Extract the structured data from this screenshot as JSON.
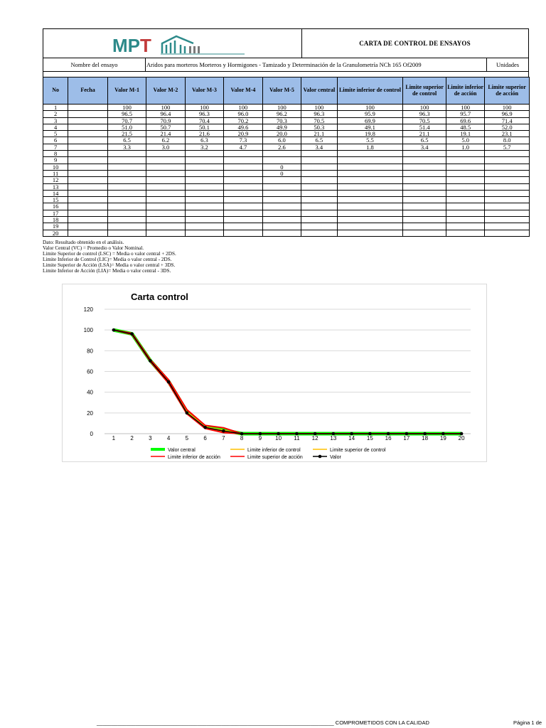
{
  "header": {
    "logo": "MPT",
    "title": "CARTA DE CONTROL DE ENSAYOS"
  },
  "test_row": {
    "label": "Nombre del ensayo",
    "name": "Aridos para morteros Morteros y Hormigones -  Tamizado y Determinación de la Granulometría NCh 165 Of2009",
    "units_label": "Unidades"
  },
  "table": {
    "columns": [
      "No",
      "Fecha",
      "Valor M-1",
      "Valor M-2",
      "Valor M-3",
      "Valor M-4",
      "Valor M-5",
      "Valor central",
      "Limite inferior de control",
      "Limite superior de control",
      "Limite inferior de acción",
      "Limite superior de acción"
    ],
    "rows": [
      [
        "1",
        "",
        "100",
        "100",
        "100",
        "100",
        "100",
        "100",
        "100",
        "100",
        "100",
        "100"
      ],
      [
        "2",
        "",
        "96.5",
        "96.4",
        "96.3",
        "96.0",
        "96.2",
        "96.3",
        "95.9",
        "96.3",
        "95.7",
        "96.9"
      ],
      [
        "3",
        "",
        "70.7",
        "70.9",
        "70.4",
        "70.2",
        "70.3",
        "70.5",
        "69.9",
        "70.5",
        "69.6",
        "71.4"
      ],
      [
        "4",
        "",
        "51.0",
        "50.7",
        "50.1",
        "49.6",
        "49.9",
        "50.3",
        "49.1",
        "51.4",
        "48.5",
        "52.0"
      ],
      [
        "5",
        "",
        "21.5",
        "21.4",
        "21.6",
        "20.9",
        "20.0",
        "21.1",
        "19.8",
        "21.1",
        "19.1",
        "23.1"
      ],
      [
        "6",
        "",
        "6.5",
        "6.2",
        "6.3",
        "7.3",
        "6.0",
        "6.5",
        "5.5",
        "6.5",
        "5.0",
        "8.0"
      ],
      [
        "7",
        "",
        "3.3",
        "3.0",
        "3.2",
        "4.7",
        "2.6",
        "3.4",
        "1.8",
        "3.4",
        "1.0",
        "5.7"
      ],
      [
        "8",
        "",
        "",
        "",
        "",
        "",
        "",
        "",
        "",
        "",
        "",
        ""
      ],
      [
        "9",
        "",
        "",
        "",
        "",
        "",
        "",
        "",
        "",
        "",
        "",
        ""
      ],
      [
        "10",
        "",
        "",
        "",
        "",
        "",
        "0",
        "",
        "",
        "",
        "",
        ""
      ],
      [
        "11",
        "",
        "",
        "",
        "",
        "",
        "0",
        "",
        "",
        "",
        "",
        ""
      ],
      [
        "12",
        "",
        "",
        "",
        "",
        "",
        "",
        "",
        "",
        "",
        "",
        ""
      ],
      [
        "13",
        "",
        "",
        "",
        "",
        "",
        "",
        "",
        "",
        "",
        "",
        ""
      ],
      [
        "14",
        "",
        "",
        "",
        "",
        "",
        "",
        "",
        "",
        "",
        "",
        ""
      ],
      [
        "15",
        "",
        "",
        "",
        "",
        "",
        "",
        "",
        "",
        "",
        "",
        ""
      ],
      [
        "16",
        "",
        "",
        "",
        "",
        "",
        "",
        "",
        "",
        "",
        "",
        ""
      ],
      [
        "17",
        "",
        "",
        "",
        "",
        "",
        "",
        "",
        "",
        "",
        "",
        ""
      ],
      [
        "18",
        "",
        "",
        "",
        "",
        "",
        "",
        "",
        "",
        "",
        "",
        ""
      ],
      [
        "19",
        "",
        "",
        "",
        "",
        "",
        "",
        "",
        "",
        "",
        "",
        ""
      ],
      [
        "20",
        "",
        "",
        "",
        "",
        "",
        "",
        "",
        "",
        "",
        "",
        ""
      ]
    ]
  },
  "notes": [
    "Dato: Resultado obtenido en el análisis.",
    "Valor Central (VC) = Promedio o Valor Nominal.",
    "Limite Superior de control (LSC) = Media o valor central + 2DS.",
    "Limite Inferior de Control (LIC)= Media o valor central - 2DS.",
    "Limite Superior de Acción  (LSA)= Media o valor central + 3DS.",
    "Limite Inferior de Acción (LIA)= Media o valor central - 3DS."
  ],
  "chart_data": {
    "type": "line",
    "title": "Carta control",
    "x": [
      1,
      2,
      3,
      4,
      5,
      6,
      7,
      8,
      9,
      10,
      11,
      12,
      13,
      14,
      15,
      16,
      17,
      18,
      19,
      20
    ],
    "ylim": [
      0,
      120
    ],
    "yticks": [
      0,
      20,
      40,
      60,
      80,
      100,
      120
    ],
    "grid": true,
    "legend_position": "bottom",
    "series": [
      {
        "name": "Valor central",
        "color": "#00ff00",
        "values": [
          100,
          96.3,
          70.5,
          50.3,
          21.1,
          6.5,
          3.4,
          0,
          0,
          0,
          0,
          0,
          0,
          0,
          0,
          0,
          0,
          0,
          0,
          0
        ]
      },
      {
        "name": "Limite inferior de control",
        "color": "#ffc000",
        "values": [
          100,
          95.9,
          69.9,
          49.1,
          19.8,
          5.5,
          1.8,
          0,
          0,
          0,
          0,
          0,
          0,
          0,
          0,
          0,
          0,
          0,
          0,
          0
        ]
      },
      {
        "name": "Limite superior de control",
        "color": "#ffc000",
        "values": [
          100,
          96.3,
          70.5,
          51.4,
          21.1,
          6.5,
          3.4,
          0,
          0,
          0,
          0,
          0,
          0,
          0,
          0,
          0,
          0,
          0,
          0,
          0
        ]
      },
      {
        "name": "Limite inferior de acción",
        "color": "#ff0000",
        "values": [
          100,
          95.7,
          69.6,
          48.5,
          19.1,
          5.0,
          1.0,
          0,
          0,
          0,
          0,
          0,
          0,
          0,
          0,
          0,
          0,
          0,
          0,
          0
        ]
      },
      {
        "name": "Limite superior de acción",
        "color": "#ff0000",
        "values": [
          100,
          96.9,
          71.4,
          52.0,
          23.1,
          8.0,
          5.7,
          0,
          0,
          0,
          0,
          0,
          0,
          0,
          0,
          0,
          0,
          0,
          0,
          0
        ]
      },
      {
        "name": "Valor",
        "color": "#000000",
        "values": [
          100,
          96.2,
          70.3,
          49.9,
          20.0,
          6.0,
          2.6,
          0,
          0,
          0,
          0,
          0,
          0,
          0,
          0,
          0,
          0,
          0,
          0,
          0
        ]
      }
    ]
  },
  "footer": {
    "line": "________________________________________________________________________________ COMPROMETIDOS CON LA CALIDAD",
    "page": "Página 1 de"
  }
}
